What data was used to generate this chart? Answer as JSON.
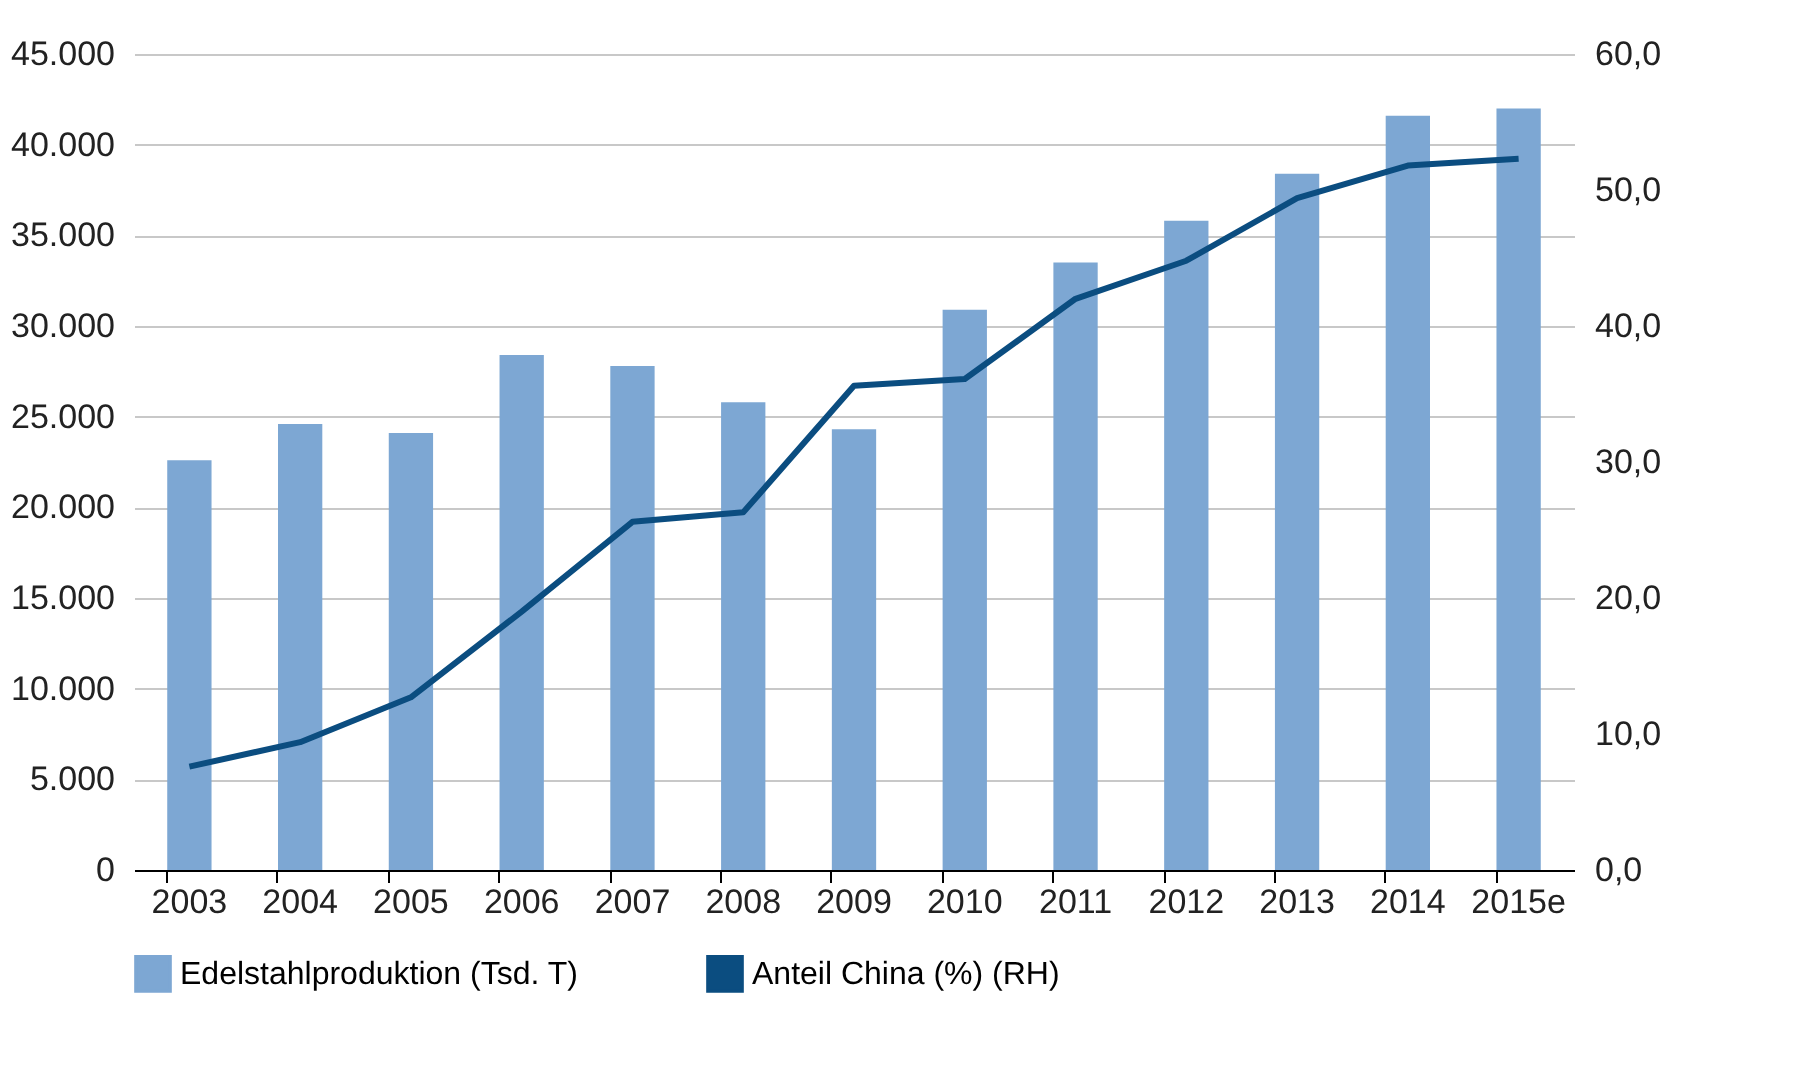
{
  "chart_data": {
    "type": "bar",
    "categories": [
      "2003",
      "2004",
      "2005",
      "2006",
      "2007",
      "2008",
      "2009",
      "2010",
      "2011",
      "2012",
      "2013",
      "2014",
      "2015e"
    ],
    "series": [
      {
        "name": "Edelstahlproduktion (Tsd. T)",
        "color": "#7da7d3",
        "values": [
          22600,
          24600,
          24100,
          28400,
          27800,
          25800,
          24300,
          30900,
          33500,
          35800,
          38400,
          41600,
          42000
        ]
      },
      {
        "name": "Anteil China (%) (RH)",
        "type": "line",
        "axis": "y2",
        "color": "#0b4d80",
        "values": [
          7.6,
          9.4,
          12.7,
          19.0,
          25.6,
          26.3,
          35.6,
          36.1,
          42.0,
          44.8,
          49.4,
          51.8,
          52.3
        ]
      }
    ],
    "ylim": [
      0,
      45000
    ],
    "yticks": [
      {
        "value": 0,
        "label": "0"
      },
      {
        "value": 5000,
        "label": "5.000"
      },
      {
        "value": 10000,
        "label": "10.000"
      },
      {
        "value": 15000,
        "label": "15.000"
      },
      {
        "value": 20000,
        "label": "20.000"
      },
      {
        "value": 25000,
        "label": "25.000"
      },
      {
        "value": 30000,
        "label": "30.000"
      },
      {
        "value": 35000,
        "label": "35.000"
      },
      {
        "value": 40000,
        "label": "40.000"
      },
      {
        "value": 45000,
        "label": "45.000"
      }
    ],
    "y2lim": [
      0,
      60
    ],
    "y2ticks": [
      {
        "value": 0,
        "label": "0,0"
      },
      {
        "value": 10,
        "label": "10,0"
      },
      {
        "value": 20,
        "label": "20,0"
      },
      {
        "value": 30,
        "label": "30,0"
      },
      {
        "value": 40,
        "label": "40,0"
      },
      {
        "value": 50,
        "label": "50,0"
      },
      {
        "value": 60,
        "label": "60,0"
      }
    ],
    "grid": "y",
    "legend": "bottom"
  }
}
